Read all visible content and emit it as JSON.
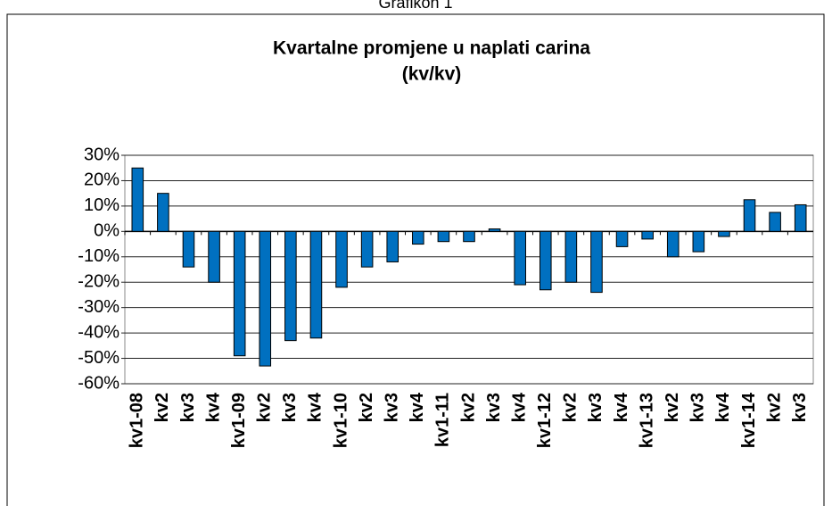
{
  "chart_data": {
    "type": "bar",
    "caption": "Grafikon 1",
    "title": "Kvartalne promjene u naplati carina",
    "subtitle": "(kv/kv)",
    "categories": [
      "kv1-08",
      "kv2",
      "kv3",
      "kv4",
      "kv1-09",
      "kv2",
      "kv3",
      "kv4",
      "kv1-10",
      "kv2",
      "kv3",
      "kv4",
      "kv1-11",
      "kv2",
      "kv3",
      "kv4",
      "kv1-12",
      "kv2",
      "kv3",
      "kv4",
      "kv1-13",
      "kv2",
      "kv3",
      "kv4",
      "kv1-14",
      "kv2",
      "kv3"
    ],
    "values": [
      25,
      15,
      -14,
      -20,
      -49,
      -53,
      -43,
      -42,
      -22,
      -14,
      -12,
      -5,
      -4,
      -4,
      1,
      -21,
      -23,
      -20,
      -24,
      -6,
      -3,
      -10,
      -8,
      -2,
      12.5,
      7.5,
      10.5
    ],
    "color": "#0070c0",
    "ylim": [
      -60,
      30
    ],
    "yticks": [
      {
        "value": -60,
        "label": "-60%"
      },
      {
        "value": -50,
        "label": "-50%"
      },
      {
        "value": -40,
        "label": "-40%"
      },
      {
        "value": -30,
        "label": "-30%"
      },
      {
        "value": -20,
        "label": "-20%"
      },
      {
        "value": -10,
        "label": "-10%"
      },
      {
        "value": 0,
        "label": "0%"
      },
      {
        "value": 10,
        "label": "10%"
      },
      {
        "value": 20,
        "label": "20%"
      },
      {
        "value": 30,
        "label": "30%"
      }
    ],
    "grid": true
  }
}
